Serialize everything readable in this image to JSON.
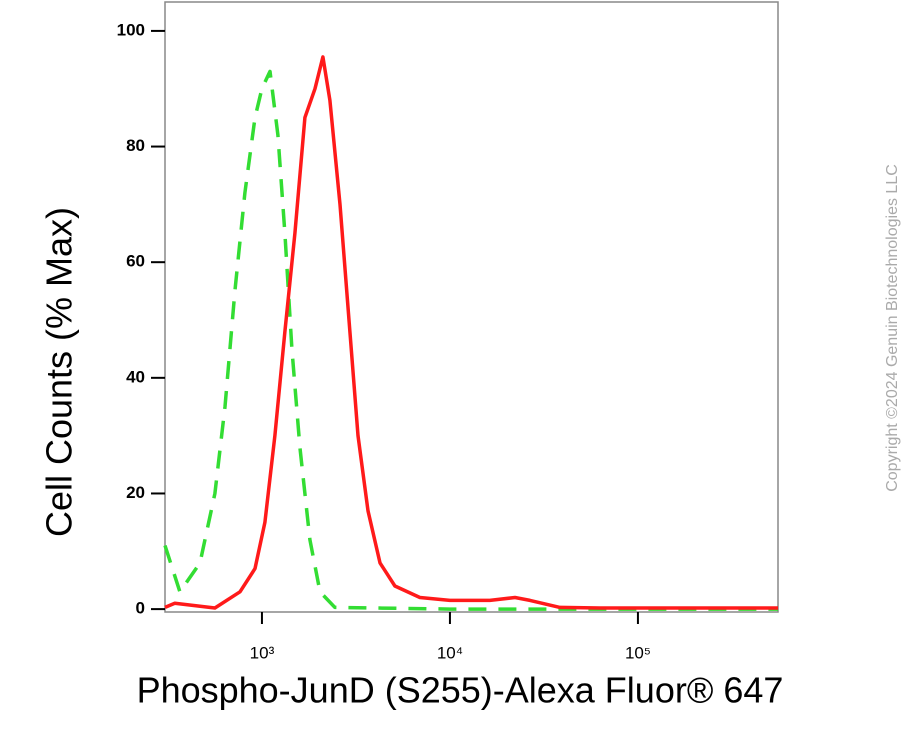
{
  "chart_data": {
    "type": "line",
    "x_label": "Phospho-JunD (S255)-Alexa Fluor® 647",
    "y_label": "Cell Counts (% Max)",
    "watermark": "Copyright ©2024 Genuin Biotechnologies LLC",
    "xscale": "log",
    "xlim": [
      305,
      556000
    ],
    "ylim": [
      -0.5,
      105
    ],
    "xticks": [
      {
        "value": 1000,
        "label": "10³"
      },
      {
        "value": 10000,
        "label": "10⁴"
      },
      {
        "value": 100000,
        "label": "10⁵"
      }
    ],
    "yticks": [
      0,
      20,
      40,
      60,
      80,
      100
    ],
    "series": [
      {
        "color": "#ff1a1a",
        "dashed": false,
        "x": [
          305,
          344,
          562,
          764,
          918,
          1037,
          1172,
          1325,
          1498,
          1693,
          1914,
          2110,
          2300,
          2600,
          2938,
          3243,
          3664,
          4244,
          5097,
          6920,
          10000,
          16320,
          22180,
          26660,
          38470,
          62790,
          213800,
          556000
        ],
        "values": [
          0.3,
          1,
          0.2,
          3,
          7,
          15,
          30,
          48,
          65,
          85,
          90,
          95.5,
          88,
          70,
          48,
          30,
          17,
          8,
          4,
          2,
          1.5,
          1.5,
          2,
          1.5,
          0.3,
          0.2,
          0.2,
          0.2
        ]
      },
      {
        "color": "#33dd33",
        "dashed": true,
        "x": [
          305,
          366,
          468,
          562,
          636,
          718,
          812,
          918,
          1000,
          1103,
          1216,
          1325,
          1444,
          1592,
          1800,
          2036,
          2444,
          10000,
          556000
        ],
        "values": [
          11,
          3,
          8,
          20,
          35,
          55,
          72,
          85,
          90,
          93,
          82,
          65,
          45,
          28,
          12,
          3,
          0.3,
          0,
          0
        ]
      }
    ]
  }
}
